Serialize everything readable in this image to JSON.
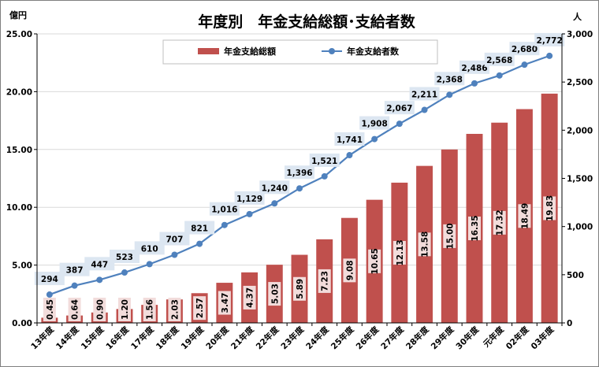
{
  "chart_data": {
    "type": "bar",
    "title": "年度別　年金支給総額･支給者数",
    "left_axis": {
      "unit": "億円",
      "ylim": [
        0,
        25
      ],
      "ticks": [
        "0.00",
        "5.00",
        "10.00",
        "15.00",
        "20.00",
        "25.00"
      ]
    },
    "right_axis": {
      "unit": "人",
      "ylim": [
        0,
        3000
      ],
      "ticks": [
        "0",
        "500",
        "1,000",
        "1,500",
        "2,000",
        "2,500",
        "3,000"
      ]
    },
    "categories": [
      "13年度",
      "14年度",
      "15年度",
      "16年度",
      "17年度",
      "18年度",
      "19年度",
      "20年度",
      "21年度",
      "22年度",
      "23年度",
      "24年度",
      "25年度",
      "26年度",
      "27年度",
      "28年度",
      "29年度",
      "30年度",
      "元年度",
      "02年度",
      "03年度"
    ],
    "legend_position": "top-center",
    "grid": true,
    "series": [
      {
        "name": "年金支給総額",
        "type": "bar",
        "axis": "left",
        "color": "#c0504d",
        "values": [
          0.45,
          0.64,
          0.9,
          1.2,
          1.56,
          2.03,
          2.57,
          3.47,
          4.37,
          5.03,
          5.89,
          7.23,
          9.08,
          10.65,
          12.13,
          13.58,
          15.0,
          16.35,
          17.32,
          18.49,
          19.83
        ],
        "labels": [
          "0.45",
          "0.64",
          "0.90",
          "1.20",
          "1.56",
          "2.03",
          "2.57",
          "3.47",
          "4.37",
          "5.03",
          "5.89",
          "7.23",
          "9.08",
          "10.65",
          "12.13",
          "13.58",
          "15.00",
          "16.35",
          "17.32",
          "18.49",
          "19.83"
        ]
      },
      {
        "name": "年金支給者数",
        "type": "line",
        "axis": "right",
        "color": "#4f81bd",
        "values": [
          294,
          387,
          447,
          523,
          610,
          707,
          821,
          1016,
          1129,
          1240,
          1396,
          1521,
          1741,
          1908,
          2067,
          2211,
          2368,
          2486,
          2568,
          2680,
          2772
        ],
        "labels": [
          "294",
          "387",
          "447",
          "523",
          "610",
          "707",
          "821",
          "1,016",
          "1,129",
          "1,240",
          "1,396",
          "1,521",
          "1,741",
          "1,908",
          "2,067",
          "2,211",
          "2,368",
          "2,486",
          "2,568",
          "2,680",
          "2,772"
        ]
      }
    ]
  }
}
